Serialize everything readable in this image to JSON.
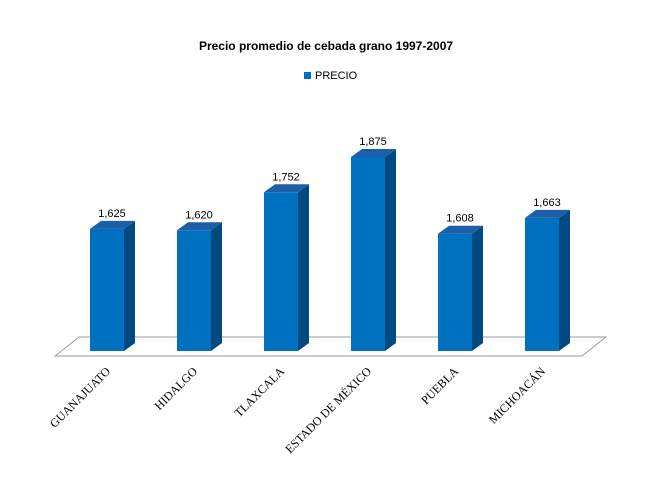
{
  "chart_data": {
    "type": "bar",
    "title": "Precio promedio de cebada grano 1997-2007",
    "xlabel": "",
    "ylabel": "",
    "legend": {
      "position": "top",
      "entries": [
        "PRECIO"
      ]
    },
    "categories": [
      "GUANAJUATO",
      "HIDALGO",
      "TLAXCALA",
      "ESTADO DE MÉXICO",
      "PUEBLA",
      "MICHOACÁN"
    ],
    "series": [
      {
        "name": "PRECIO",
        "values": [
          1625,
          1620,
          1752,
          1875,
          1608,
          1663
        ],
        "labels": [
          "1,625",
          "1,620",
          "1,752",
          "1,875",
          "1,608",
          "1,663"
        ]
      }
    ],
    "grid": false,
    "style": "3d-column",
    "colors": {
      "front": "#0070C0",
      "side": "#004A80",
      "top": "#1C5FA8",
      "floor": "#9A9A9A"
    }
  }
}
